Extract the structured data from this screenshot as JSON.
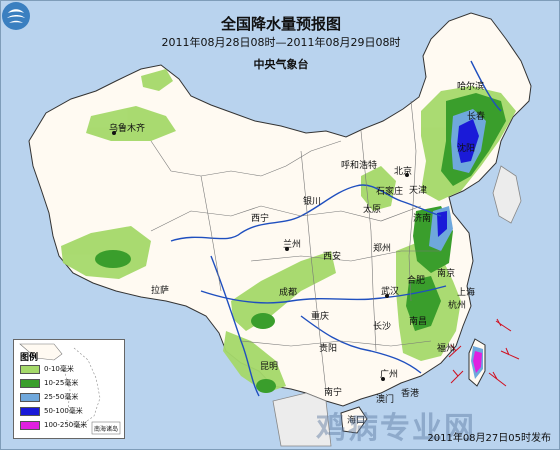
{
  "title": "全国降水量预报图",
  "subtitle": "2011年08月28日08时—2011年08月29日08时",
  "agency": "中央气象台",
  "footer": "2011年08月27日05时发布",
  "watermark": "鸡病专业网",
  "legend": {
    "title": "图例",
    "items": [
      {
        "label": "0-10毫米",
        "color": "#a5d96a"
      },
      {
        "label": "10-25毫米",
        "color": "#3a9e2c"
      },
      {
        "label": "25-50毫米",
        "color": "#6fa8dc"
      },
      {
        "label": "50-100毫米",
        "color": "#1a1ad8"
      },
      {
        "label": "100-250毫米",
        "color": "#e020e0"
      }
    ],
    "inset_label": "南海诸岛"
  },
  "cities": [
    {
      "name": "乌鲁木齐"
    },
    {
      "name": "哈尔滨"
    },
    {
      "name": "长春"
    },
    {
      "name": "沈阳"
    },
    {
      "name": "呼和浩特"
    },
    {
      "name": "北京"
    },
    {
      "name": "天津"
    },
    {
      "name": "石家庄"
    },
    {
      "name": "太原"
    },
    {
      "name": "济南"
    },
    {
      "name": "银川"
    },
    {
      "name": "西宁"
    },
    {
      "name": "兰州"
    },
    {
      "name": "西安"
    },
    {
      "name": "郑州"
    },
    {
      "name": "合肥"
    },
    {
      "name": "南京"
    },
    {
      "name": "上海"
    },
    {
      "name": "武汉"
    },
    {
      "name": "杭州"
    },
    {
      "name": "拉萨"
    },
    {
      "name": "成都"
    },
    {
      "name": "重庆"
    },
    {
      "name": "长沙"
    },
    {
      "name": "南昌"
    },
    {
      "name": "贵阳"
    },
    {
      "name": "福州"
    },
    {
      "name": "昆明"
    },
    {
      "name": "南宁"
    },
    {
      "name": "广州"
    },
    {
      "name": "香港"
    },
    {
      "name": "澳门"
    },
    {
      "name": "海口"
    }
  ]
}
